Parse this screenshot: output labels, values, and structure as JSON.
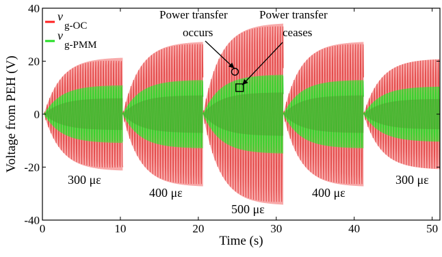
{
  "chart_data": {
    "type": "line",
    "xlabel": "Time (s)",
    "ylabel": "Voltage from PEH (V)",
    "xlim": [
      0,
      51
    ],
    "ylim": [
      -40,
      40
    ],
    "x_ticks": [
      "0",
      "10",
      "20",
      "30",
      "40",
      "50"
    ],
    "y_ticks": [
      "40",
      "20",
      "0",
      "-20",
      "-40"
    ],
    "legend_position": "top-left",
    "series": [
      {
        "name": "v",
        "name_sub": "g-OC",
        "color": "#f26565",
        "envelope_amplitude_V": [
          21.5,
          27.5,
          34.5,
          27.5,
          21
        ]
      },
      {
        "name": "v",
        "name_sub": "g-PMM",
        "color": "#33ee33",
        "envelope_amplitude_V": [
          11,
          13,
          15,
          13,
          10.5
        ]
      }
    ],
    "segments": [
      {
        "start_s": 0.2,
        "end_s": 10.3,
        "strain": "300 με"
      },
      {
        "start_s": 10.3,
        "end_s": 20.6,
        "strain": "400 με"
      },
      {
        "start_s": 20.6,
        "end_s": 30.9,
        "strain": "500 με"
      },
      {
        "start_s": 30.9,
        "end_s": 41.2,
        "strain": "400 με"
      },
      {
        "start_s": 41.2,
        "end_s": 51,
        "strain": "300 με"
      }
    ],
    "annotations": [
      {
        "line1": "Power transfer",
        "line2": "occurs",
        "target_x_s": 24.7,
        "target_y_V": 16,
        "marker": "circle"
      },
      {
        "line1": "Power transfer",
        "line2": "ceases",
        "target_x_s": 25.3,
        "target_y_V": 10,
        "marker": "square"
      }
    ]
  }
}
